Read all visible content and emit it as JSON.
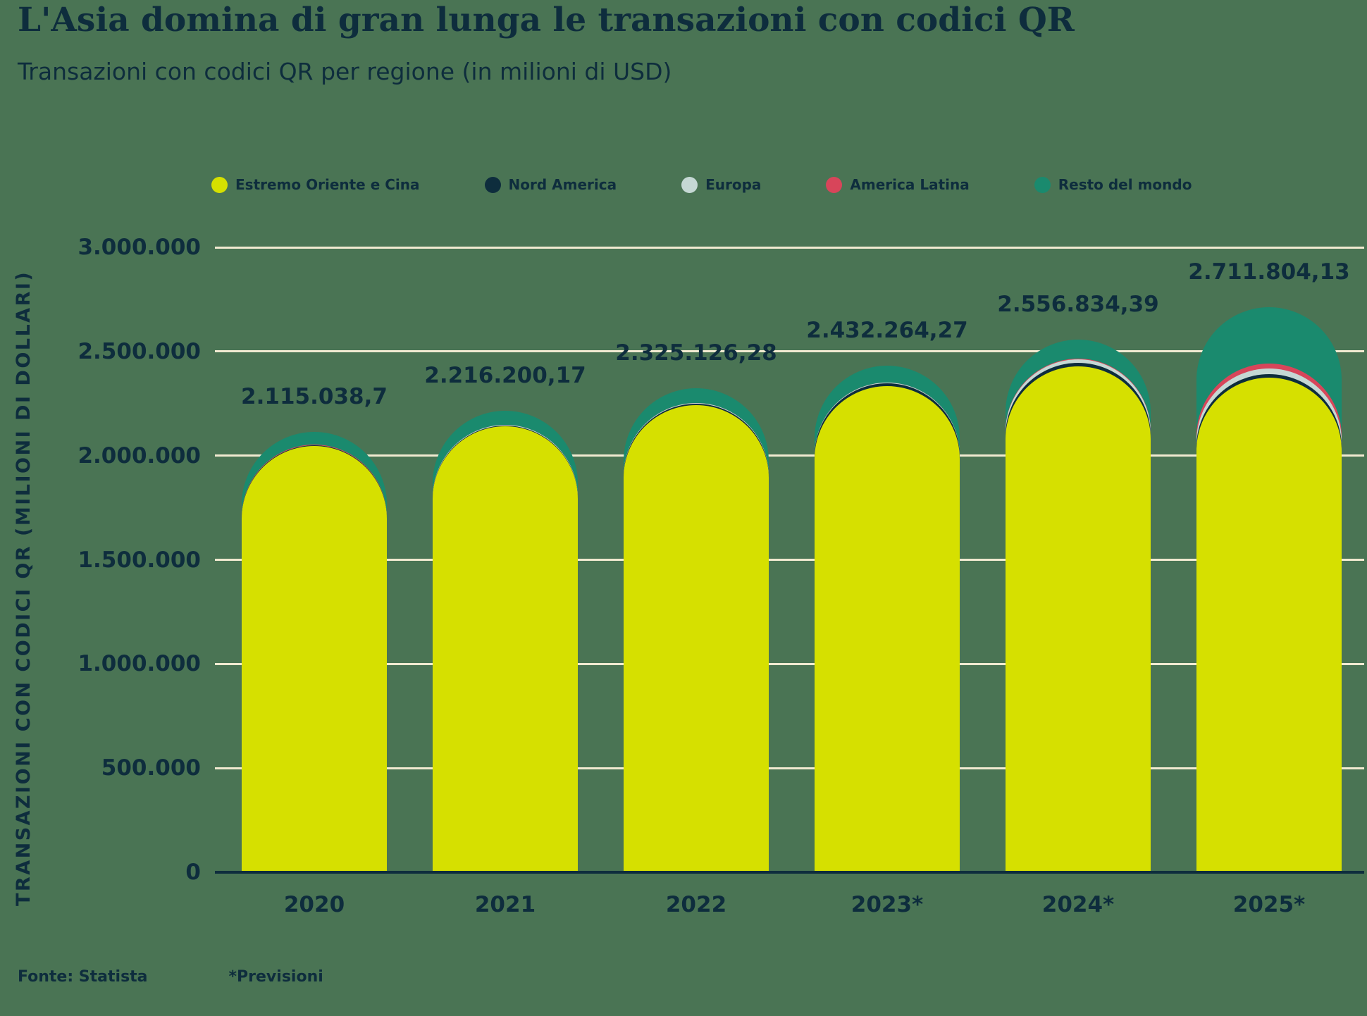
{
  "header": {
    "title": "L'Asia domina di gran lunga le transazioni con codici QR",
    "subtitle": "Transazioni con codici QR per regione (in milioni di USD)"
  },
  "legend": [
    {
      "label": "Estremo Oriente e Cina",
      "color": "#d6e000"
    },
    {
      "label": "Nord America",
      "color": "#0e2d3d"
    },
    {
      "label": "Europa",
      "color": "#c5d8d4"
    },
    {
      "label": "America Latina",
      "color": "#d8455a"
    },
    {
      "label": "Resto del mondo",
      "color": "#1a8a6e"
    }
  ],
  "y_axis": {
    "title": "TRANSAZIONI CON CODICI QR (MILIONI DI DOLLARI)",
    "tick_labels": [
      "0",
      "500.000",
      "1.000.000",
      "1.500.000",
      "2.000.000",
      "2.500.000",
      "3.000.000"
    ]
  },
  "footer": {
    "source": "Fonte: Statista",
    "note": "*Previsioni"
  },
  "colors": {
    "background": "#4a7454",
    "text": "#0e2d3d",
    "gridline": "#f1ead1",
    "axis_line": "#0e2d3d"
  },
  "chart_data": {
    "type": "bar",
    "stacked": true,
    "rounded_tops": true,
    "title": "L'Asia domina di gran lunga le transazioni con codici QR",
    "subtitle": "Transazioni con codici QR per regione (in milioni di USD)",
    "categories": [
      "2020",
      "2021",
      "2022",
      "2023*",
      "2024*",
      "2025*"
    ],
    "series": [
      {
        "name": "Estremo Oriente e Cina",
        "color": "#d6e000",
        "values": [
          2045038.7,
          2141200.17,
          2243126.28,
          2334264.27,
          2427834.39,
          2373804.13
        ]
      },
      {
        "name": "Nord America",
        "color": "#0e2d3d",
        "values": [
          3000,
          3500,
          5000,
          13000,
          17000,
          17000
        ]
      },
      {
        "name": "Europa",
        "color": "#c5d8d4",
        "values": [
          2000,
          2500,
          3000,
          3000,
          17000,
          27000
        ]
      },
      {
        "name": "America Latina",
        "color": "#d8455a",
        "values": [
          2000,
          2000,
          2000,
          2000,
          5000,
          24000
        ]
      },
      {
        "name": "Resto del mondo",
        "color": "#1a8a6e",
        "values": [
          63000,
          67000,
          72000,
          80000,
          90000,
          270000
        ]
      }
    ],
    "totals": [
      2115038.7,
      2216200.17,
      2325126.28,
      2432264.27,
      2556834.39,
      2711804.13
    ],
    "totals_labels": [
      "2.115.038,7",
      "2.216.200,17",
      "2.325.126,28",
      "2.432.264,27",
      "2.556.834,39",
      "2.711.804,13"
    ],
    "ylabel": "TRANSAZIONI CON CODICI QR (MILIONI DI DOLLARI)",
    "ylim": [
      0,
      3000000
    ],
    "y_ticks": [
      0,
      500000,
      1000000,
      1500000,
      2000000,
      2500000,
      3000000
    ],
    "grid": true,
    "legend_position": "top"
  }
}
